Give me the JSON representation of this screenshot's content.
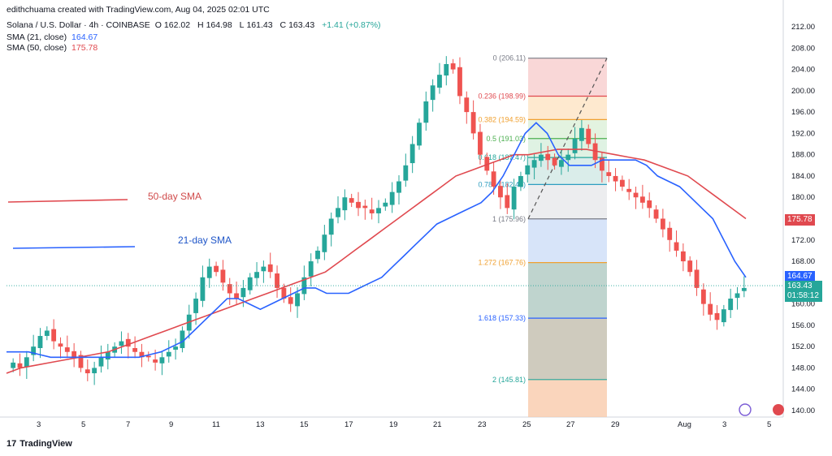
{
  "header": {
    "attribution": "edithchuama created with TradingView.com, Aug 04, 2025 02:01 UTC",
    "symbol": "Solana / U.S. Dollar · 4h · COINBASE",
    "ohlc": {
      "o_label": "O",
      "o": "162.02",
      "h_label": "H",
      "h": "164.98",
      "l_label": "L",
      "l": "161.43",
      "c_label": "C",
      "c": "163.43",
      "change": "+1.41 (+0.87%)"
    },
    "sma21_label": "SMA (21, close)",
    "sma21_value": "164.67",
    "sma50_label": "SMA (50, close)",
    "sma50_value": "175.78"
  },
  "colors": {
    "up": "#26a69a",
    "down": "#ef5350",
    "sma21": "#2962ff",
    "sma50": "#e0494f",
    "legend50": "#d04a4a",
    "legend21": "#1e55c8"
  },
  "annotations": {
    "sma50_text": "50-day SMA",
    "sma21_text": "21-day SMA"
  },
  "price_badges": {
    "sma50": "175.78",
    "sma21": "164.67",
    "last": "163.43",
    "countdown": "01:58:12"
  },
  "footer": {
    "brand": "TradingView",
    "logo": "17"
  },
  "chart_data": {
    "type": "candlestick",
    "ylim": [
      138,
      214
    ],
    "y_ticks": [
      "212.00",
      "208.00",
      "204.00",
      "200.00",
      "196.00",
      "192.00",
      "188.00",
      "184.00",
      "180.00",
      "176.00",
      "172.00",
      "168.00",
      "164.00",
      "160.00",
      "156.00",
      "152.00",
      "148.00",
      "144.00",
      "140.00"
    ],
    "x_ticks": [
      "3",
      "5",
      "7",
      "9",
      "11",
      "13",
      "15",
      "17",
      "19",
      "21",
      "23",
      "25",
      "27",
      "29",
      "Aug",
      "3",
      "5"
    ],
    "fib_levels": [
      {
        "ratio": "0",
        "price": 206.11,
        "label": "0 (206.11)"
      },
      {
        "ratio": "0.236",
        "price": 198.99,
        "label": "0.236 (198.99)"
      },
      {
        "ratio": "0.382",
        "price": 194.59,
        "label": "0.382 (194.59)"
      },
      {
        "ratio": "0.5",
        "price": 191.03,
        "label": "0.5 (191.03)"
      },
      {
        "ratio": "0.618",
        "price": 187.47,
        "label": "0.618 (187.47)"
      },
      {
        "ratio": "0.786",
        "price": 182.41,
        "label": "0.786 (182.41)"
      },
      {
        "ratio": "1",
        "price": 175.96,
        "label": "1 (175.96)"
      },
      {
        "ratio": "1.272",
        "price": 167.76,
        "label": "1.272 (167.76)"
      },
      {
        "ratio": "1.618",
        "price": 157.33,
        "label": "1.618 (157.33)"
      },
      {
        "ratio": "2",
        "price": 145.81,
        "label": "2 (145.81)"
      }
    ],
    "close_path": [
      149,
      148,
      150,
      152,
      154,
      155,
      153,
      152,
      151,
      150,
      148,
      147,
      148,
      150,
      151,
      152,
      153,
      152,
      151,
      150,
      150,
      149,
      150,
      151,
      152,
      155,
      158,
      161,
      165,
      167,
      166,
      164,
      162,
      161,
      163,
      165,
      166,
      167,
      166,
      163,
      161,
      160,
      162,
      165,
      168,
      170,
      173,
      176,
      178,
      180,
      179,
      178,
      178,
      177,
      178,
      179,
      181,
      183,
      186,
      190,
      194,
      198,
      201,
      203,
      205,
      204,
      199,
      196,
      192,
      188,
      185,
      182,
      180,
      178,
      182,
      184,
      186,
      187,
      188,
      187,
      186,
      187,
      188,
      191,
      193,
      190,
      187,
      185,
      184,
      183,
      182,
      181,
      180,
      179,
      178,
      176,
      174,
      172,
      170,
      168,
      166,
      163,
      160,
      158,
      157,
      159,
      161,
      162,
      163
    ],
    "sma21_path": [
      151,
      151,
      151,
      150.5,
      150,
      150,
      150,
      150,
      150,
      150,
      150,
      150,
      150,
      150.5,
      151,
      152,
      153,
      155,
      157,
      159,
      161,
      161,
      160,
      159,
      160,
      161,
      162,
      163,
      163,
      162,
      162,
      162,
      163,
      164,
      165,
      167,
      169,
      171,
      173,
      175,
      176,
      177,
      178,
      179,
      181,
      184,
      188,
      192,
      194,
      192,
      188,
      186,
      186,
      186,
      187,
      187,
      187,
      187,
      186,
      184,
      183,
      182,
      180,
      178,
      176,
      172,
      168,
      165
    ],
    "sma50_path": [
      147,
      148,
      148.5,
      149,
      149.5,
      150,
      150.5,
      151,
      152,
      153,
      154,
      155,
      156,
      157,
      158,
      159,
      160,
      161,
      162,
      163,
      164,
      165,
      166,
      168,
      170,
      172,
      174,
      176,
      178,
      180,
      182,
      184,
      185,
      186,
      187,
      188,
      188,
      188.5,
      189,
      189,
      189,
      188.5,
      188,
      187.5,
      187,
      186,
      185,
      184,
      182,
      180,
      178,
      176
    ]
  }
}
